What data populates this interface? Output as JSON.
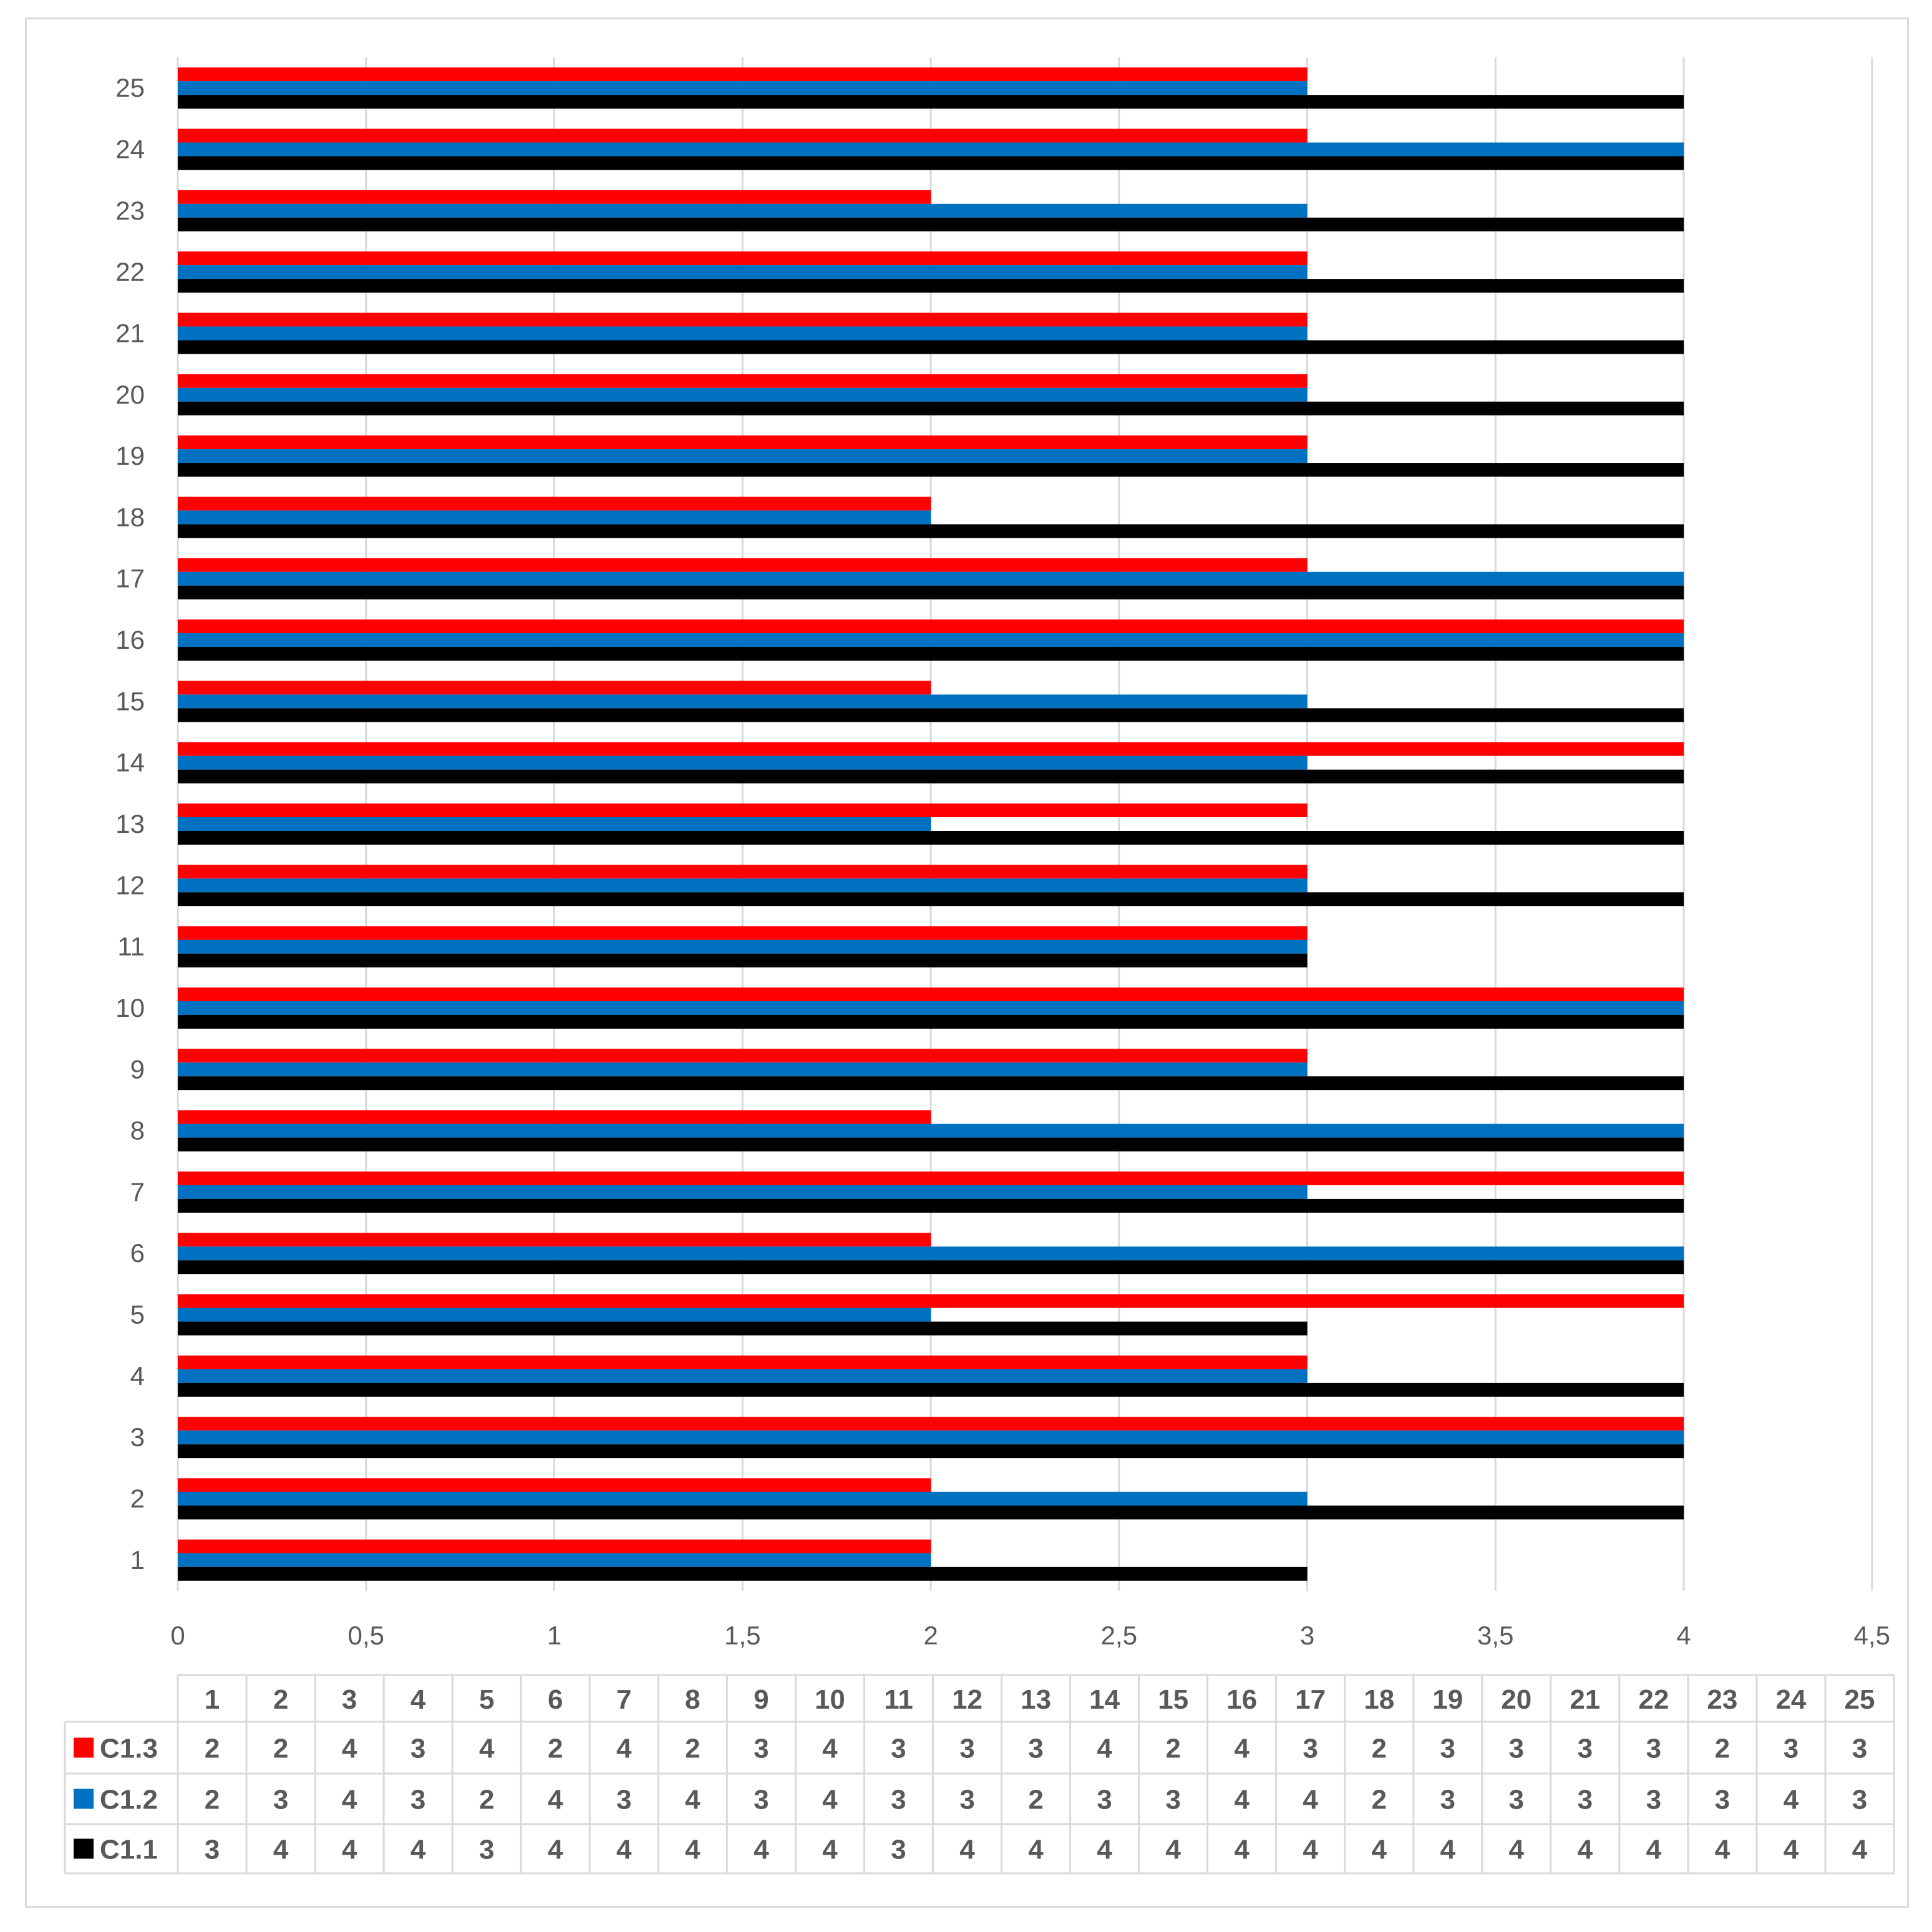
{
  "chart_data": {
    "type": "bar",
    "orientation": "horizontal",
    "title": "",
    "xlabel": "",
    "ylabel": "",
    "categories": [
      "1",
      "2",
      "3",
      "4",
      "5",
      "6",
      "7",
      "8",
      "9",
      "10",
      "11",
      "12",
      "13",
      "14",
      "15",
      "16",
      "17",
      "18",
      "19",
      "20",
      "21",
      "22",
      "23",
      "24",
      "25"
    ],
    "series": [
      {
        "name": "C1.3",
        "color": "#ff0000",
        "values": [
          2,
          2,
          4,
          3,
          4,
          2,
          4,
          2,
          3,
          4,
          3,
          3,
          3,
          4,
          2,
          4,
          3,
          2,
          3,
          3,
          3,
          3,
          2,
          3,
          3
        ]
      },
      {
        "name": "C1.2",
        "color": "#0070c0",
        "values": [
          2,
          3,
          4,
          3,
          2,
          4,
          3,
          4,
          3,
          4,
          3,
          3,
          2,
          3,
          3,
          4,
          4,
          2,
          3,
          3,
          3,
          3,
          3,
          4,
          3
        ]
      },
      {
        "name": "C1.1",
        "color": "#000000",
        "values": [
          3,
          4,
          4,
          4,
          3,
          4,
          4,
          4,
          4,
          4,
          3,
          4,
          4,
          4,
          4,
          4,
          4,
          4,
          4,
          4,
          4,
          4,
          4,
          4,
          4
        ]
      }
    ],
    "xlim": [
      0,
      4.5
    ],
    "xticks": [
      "0",
      "0,5",
      "1",
      "1,5",
      "2",
      "2,5",
      "3",
      "3,5",
      "4",
      "4,5"
    ],
    "grid": "vertical",
    "legend": "data-table"
  }
}
